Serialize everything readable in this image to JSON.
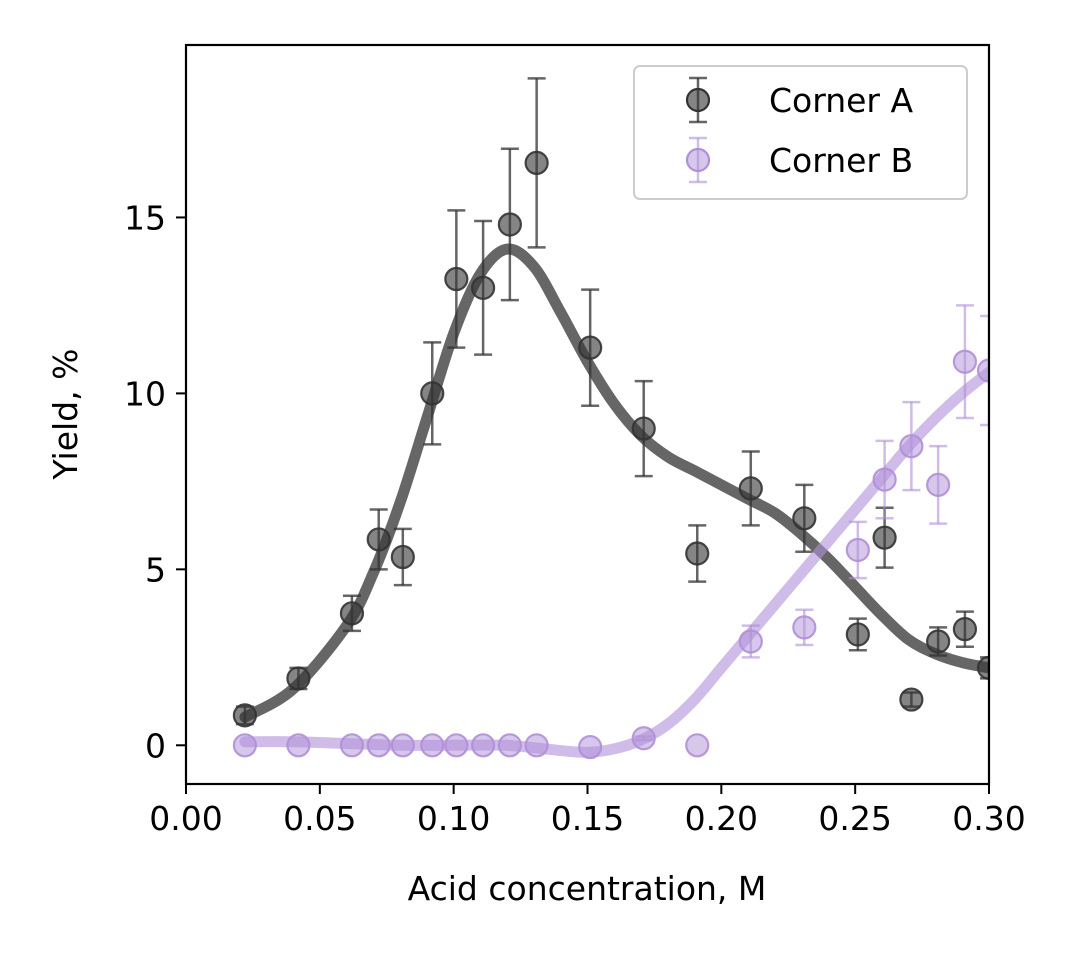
{
  "chart_data": {
    "type": "scatter",
    "title": "",
    "xlabel": "Acid concentration, M",
    "ylabel": "Yield, %",
    "xlim": [
      0.0,
      0.3
    ],
    "ylim": [
      -1.1,
      19.9
    ],
    "xticks": [
      "0.00",
      "0.05",
      "0.10",
      "0.15",
      "0.20",
      "0.25",
      "0.30"
    ],
    "yticks": [
      "0",
      "5",
      "10",
      "15"
    ],
    "grid": false,
    "legend_position": "top-right",
    "series": [
      {
        "name": "Corner A",
        "color": "#333333",
        "points": [
          {
            "x": 0.022,
            "y": 0.85,
            "err": 0.25
          },
          {
            "x": 0.042,
            "y": 1.9,
            "err": 0.3
          },
          {
            "x": 0.062,
            "y": 3.75,
            "err": 0.5
          },
          {
            "x": 0.072,
            "y": 5.85,
            "err": 0.85
          },
          {
            "x": 0.081,
            "y": 5.35,
            "err": 0.8
          },
          {
            "x": 0.092,
            "y": 10.0,
            "err": 1.45
          },
          {
            "x": 0.101,
            "y": 13.25,
            "err": 1.95
          },
          {
            "x": 0.111,
            "y": 13.0,
            "err": 1.9
          },
          {
            "x": 0.121,
            "y": 14.8,
            "err": 2.15
          },
          {
            "x": 0.131,
            "y": 16.55,
            "err": 2.4
          },
          {
            "x": 0.151,
            "y": 11.3,
            "err": 1.65
          },
          {
            "x": 0.171,
            "y": 9.0,
            "err": 1.35
          },
          {
            "x": 0.191,
            "y": 5.45,
            "err": 0.8
          },
          {
            "x": 0.211,
            "y": 7.3,
            "err": 1.05
          },
          {
            "x": 0.231,
            "y": 6.45,
            "err": 0.95
          },
          {
            "x": 0.251,
            "y": 3.15,
            "err": 0.45
          },
          {
            "x": 0.261,
            "y": 5.9,
            "err": 0.85
          },
          {
            "x": 0.271,
            "y": 1.3,
            "err": 0.2
          },
          {
            "x": 0.281,
            "y": 2.95,
            "err": 0.4
          },
          {
            "x": 0.291,
            "y": 3.3,
            "err": 0.5
          },
          {
            "x": 0.3,
            "y": 2.2,
            "err": 0.3
          }
        ],
        "fit": [
          [
            0.022,
            0.8
          ],
          [
            0.04,
            1.6
          ],
          [
            0.06,
            3.4
          ],
          [
            0.07,
            4.9
          ],
          [
            0.08,
            6.9
          ],
          [
            0.09,
            9.3
          ],
          [
            0.1,
            11.7
          ],
          [
            0.11,
            13.4
          ],
          [
            0.12,
            14.1
          ],
          [
            0.13,
            13.6
          ],
          [
            0.14,
            12.3
          ],
          [
            0.15,
            10.9
          ],
          [
            0.16,
            9.7
          ],
          [
            0.17,
            8.8
          ],
          [
            0.18,
            8.2
          ],
          [
            0.19,
            7.8
          ],
          [
            0.2,
            7.4
          ],
          [
            0.21,
            7.0
          ],
          [
            0.22,
            6.6
          ],
          [
            0.23,
            6.0
          ],
          [
            0.24,
            5.3
          ],
          [
            0.25,
            4.5
          ],
          [
            0.26,
            3.7
          ],
          [
            0.27,
            3.0
          ],
          [
            0.28,
            2.6
          ],
          [
            0.29,
            2.35
          ],
          [
            0.3,
            2.2
          ]
        ]
      },
      {
        "name": "Corner B",
        "color": "#b08fd8",
        "points": [
          {
            "x": 0.022,
            "y": 0.0,
            "err": 0.0
          },
          {
            "x": 0.042,
            "y": 0.0,
            "err": 0.0
          },
          {
            "x": 0.062,
            "y": 0.0,
            "err": 0.0
          },
          {
            "x": 0.072,
            "y": 0.0,
            "err": 0.0
          },
          {
            "x": 0.081,
            "y": 0.0,
            "err": 0.0
          },
          {
            "x": 0.092,
            "y": 0.0,
            "err": 0.0
          },
          {
            "x": 0.101,
            "y": 0.0,
            "err": 0.0
          },
          {
            "x": 0.111,
            "y": 0.0,
            "err": 0.0
          },
          {
            "x": 0.121,
            "y": 0.0,
            "err": 0.0
          },
          {
            "x": 0.131,
            "y": 0.0,
            "err": 0.0
          },
          {
            "x": 0.151,
            "y": -0.05,
            "err": 0.0
          },
          {
            "x": 0.171,
            "y": 0.2,
            "err": 0.05
          },
          {
            "x": 0.191,
            "y": 0.0,
            "err": 0.0
          },
          {
            "x": 0.211,
            "y": 2.95,
            "err": 0.45
          },
          {
            "x": 0.231,
            "y": 3.35,
            "err": 0.5
          },
          {
            "x": 0.251,
            "y": 5.55,
            "err": 0.8
          },
          {
            "x": 0.261,
            "y": 7.55,
            "err": 1.1
          },
          {
            "x": 0.271,
            "y": 8.5,
            "err": 1.25
          },
          {
            "x": 0.281,
            "y": 7.4,
            "err": 1.1
          },
          {
            "x": 0.291,
            "y": 10.9,
            "err": 1.6
          },
          {
            "x": 0.3,
            "y": 10.65,
            "err": 1.55
          }
        ],
        "fit": [
          [
            0.022,
            0.1
          ],
          [
            0.04,
            0.1
          ],
          [
            0.06,
            0.05
          ],
          [
            0.08,
            0.0
          ],
          [
            0.1,
            0.0
          ],
          [
            0.12,
            0.0
          ],
          [
            0.14,
            -0.15
          ],
          [
            0.15,
            -0.2
          ],
          [
            0.16,
            -0.1
          ],
          [
            0.17,
            0.15
          ],
          [
            0.18,
            0.6
          ],
          [
            0.19,
            1.3
          ],
          [
            0.2,
            2.2
          ],
          [
            0.21,
            3.1
          ],
          [
            0.22,
            4.0
          ],
          [
            0.23,
            4.9
          ],
          [
            0.24,
            5.8
          ],
          [
            0.25,
            6.7
          ],
          [
            0.26,
            7.6
          ],
          [
            0.27,
            8.5
          ],
          [
            0.28,
            9.3
          ],
          [
            0.29,
            10.0
          ],
          [
            0.3,
            10.6
          ]
        ]
      }
    ]
  }
}
